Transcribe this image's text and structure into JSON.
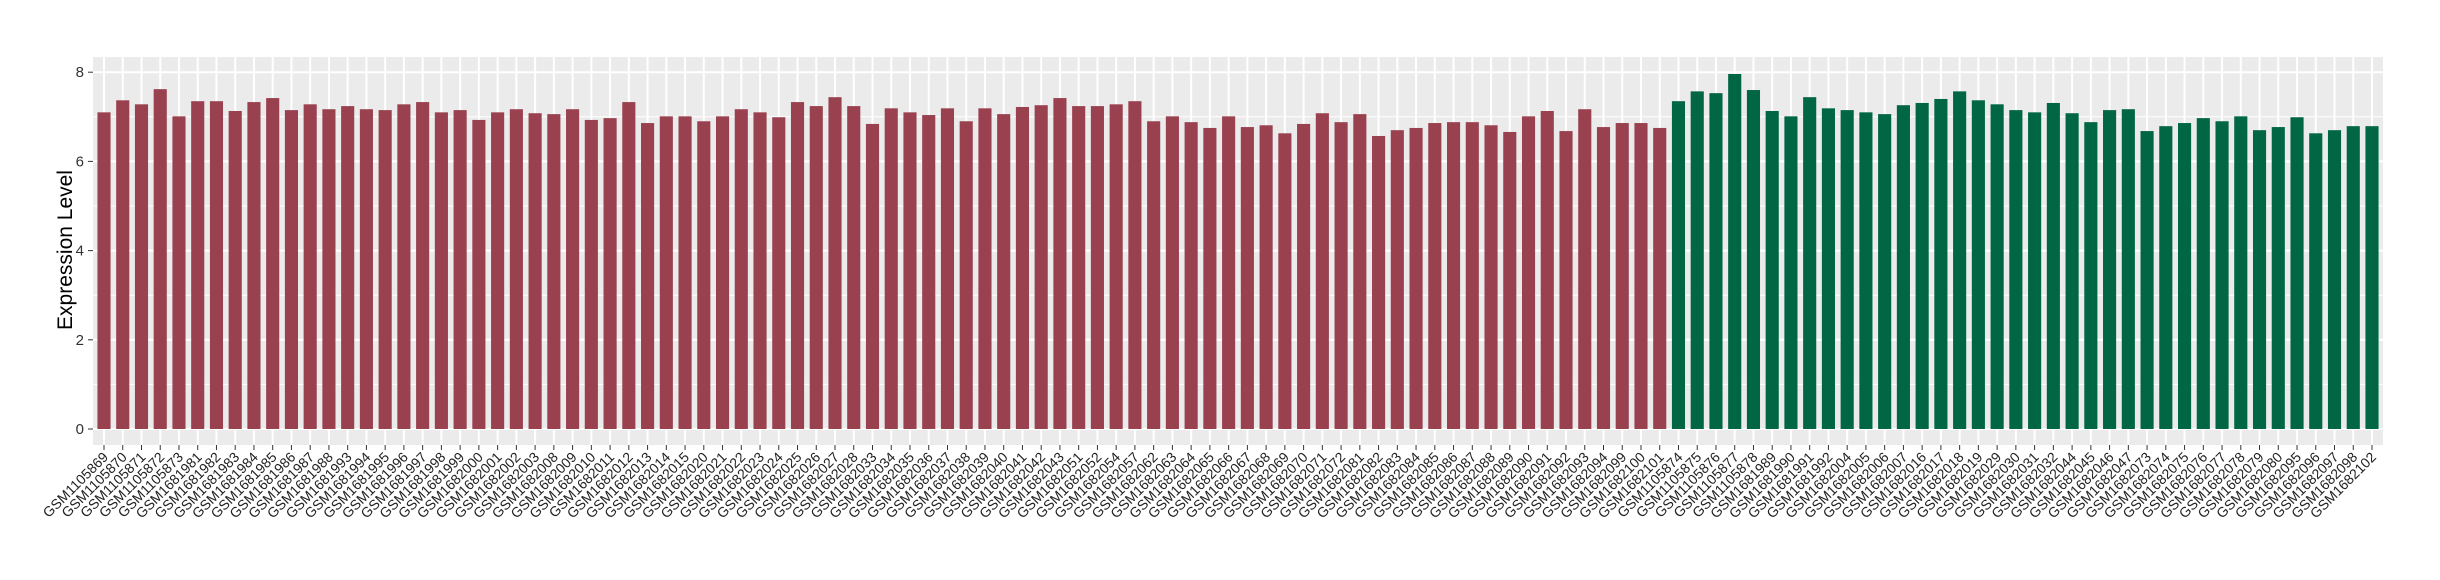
{
  "chart_data": {
    "type": "bar",
    "title": "",
    "xlabel": "",
    "ylabel": "Expression Level",
    "ylim": [
      0,
      8.2
    ],
    "yticks": [
      0,
      2,
      4,
      6,
      8
    ],
    "grid": true,
    "colors": {
      "group1": "#9a4150",
      "group2": "#006644",
      "panel": "#ebebeb",
      "gridline": "#ffffff"
    },
    "categories": [
      "GSM1105869",
      "GSM1105870",
      "GSM1105871",
      "GSM1105872",
      "GSM1105873",
      "GSM1681981",
      "GSM1681982",
      "GSM1681983",
      "GSM1681984",
      "GSM1681985",
      "GSM1681986",
      "GSM1681987",
      "GSM1681988",
      "GSM1681993",
      "GSM1681994",
      "GSM1681995",
      "GSM1681996",
      "GSM1681997",
      "GSM1681998",
      "GSM1681999",
      "GSM1682000",
      "GSM1682001",
      "GSM1682002",
      "GSM1682003",
      "GSM1682008",
      "GSM1682009",
      "GSM1682010",
      "GSM1682011",
      "GSM1682012",
      "GSM1682013",
      "GSM1682014",
      "GSM1682015",
      "GSM1682020",
      "GSM1682021",
      "GSM1682022",
      "GSM1682023",
      "GSM1682024",
      "GSM1682025",
      "GSM1682026",
      "GSM1682027",
      "GSM1682028",
      "GSM1682033",
      "GSM1682034",
      "GSM1682035",
      "GSM1682036",
      "GSM1682037",
      "GSM1682038",
      "GSM1682039",
      "GSM1682040",
      "GSM1682041",
      "GSM1682042",
      "GSM1682043",
      "GSM1682051",
      "GSM1682052",
      "GSM1682054",
      "GSM1682057",
      "GSM1682062",
      "GSM1682063",
      "GSM1682064",
      "GSM1682065",
      "GSM1682066",
      "GSM1682067",
      "GSM1682068",
      "GSM1682069",
      "GSM1682070",
      "GSM1682071",
      "GSM1682072",
      "GSM1682081",
      "GSM1682082",
      "GSM1682083",
      "GSM1682084",
      "GSM1682085",
      "GSM1682086",
      "GSM1682087",
      "GSM1682088",
      "GSM1682089",
      "GSM1682090",
      "GSM1682091",
      "GSM1682092",
      "GSM1682093",
      "GSM1682094",
      "GSM1682099",
      "GSM1682100",
      "GSM1682101",
      "GSM1105874",
      "GSM1105875",
      "GSM1105876",
      "GSM1105877",
      "GSM1105878",
      "GSM1681989",
      "GSM1681990",
      "GSM1681991",
      "GSM1681992",
      "GSM1682004",
      "GSM1682005",
      "GSM1682006",
      "GSM1682007",
      "GSM1682016",
      "GSM1682017",
      "GSM1682018",
      "GSM1682019",
      "GSM1682029",
      "GSM1682030",
      "GSM1682031",
      "GSM1682032",
      "GSM1682044",
      "GSM1682045",
      "GSM1682046",
      "GSM1682047",
      "GSM1682073",
      "GSM1682074",
      "GSM1682075",
      "GSM1682076",
      "GSM1682077",
      "GSM1682078",
      "GSM1682079",
      "GSM1682080",
      "GSM1682095",
      "GSM1682096",
      "GSM1682097",
      "GSM1682098",
      "GSM1682102"
    ],
    "values": [
      7.1,
      7.37,
      7.28,
      7.62,
      7.01,
      7.35,
      7.35,
      7.13,
      7.33,
      7.42,
      7.15,
      7.28,
      7.17,
      7.24,
      7.17,
      7.15,
      7.28,
      7.33,
      7.1,
      7.15,
      6.93,
      7.1,
      7.17,
      7.08,
      7.06,
      7.17,
      6.93,
      6.97,
      7.33,
      6.86,
      7.01,
      7.01,
      6.9,
      7.01,
      7.17,
      7.1,
      6.99,
      7.33,
      7.24,
      7.44,
      7.24,
      6.84,
      7.19,
      7.1,
      7.04,
      7.19,
      6.9,
      7.19,
      7.06,
      7.22,
      7.26,
      7.42,
      7.24,
      7.24,
      7.28,
      7.35,
      6.9,
      7.01,
      6.88,
      6.75,
      7.01,
      6.77,
      6.81,
      6.63,
      6.84,
      7.08,
      6.88,
      7.06,
      6.57,
      6.7,
      6.75,
      6.86,
      6.88,
      6.88,
      6.81,
      6.66,
      7.01,
      7.13,
      6.68,
      7.17,
      6.77,
      6.86,
      6.86,
      6.75,
      7.35,
      7.57,
      7.53,
      7.96,
      7.6,
      7.13,
      7.01,
      7.44,
      7.19,
      7.15,
      7.1,
      7.06,
      7.26,
      7.31,
      7.4,
      7.57,
      7.37,
      7.28,
      7.15,
      7.1,
      7.31,
      7.08,
      6.88,
      7.15,
      7.17,
      6.68,
      6.79,
      6.86,
      6.97,
      6.9,
      7.01,
      6.7,
      6.77,
      6.99,
      6.63,
      6.7,
      6.79,
      6.79
    ],
    "groups": [
      {
        "color_key": "group1",
        "count": 84
      },
      {
        "color_key": "group2",
        "count": 38
      }
    ]
  }
}
